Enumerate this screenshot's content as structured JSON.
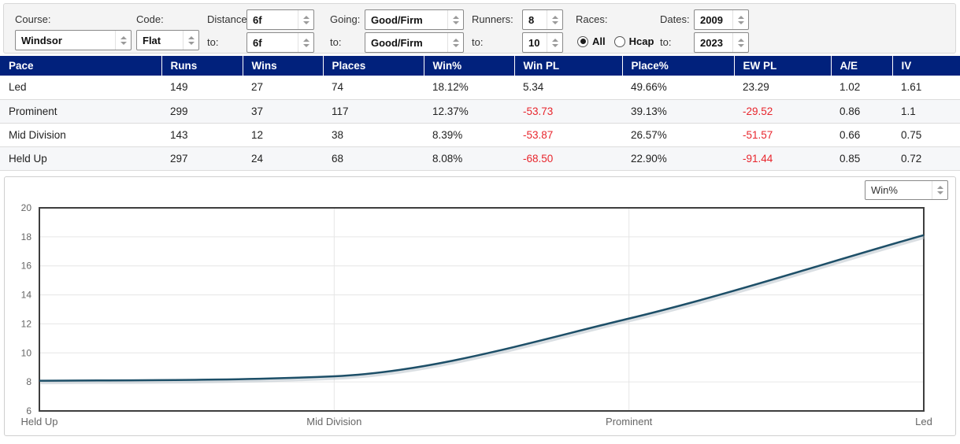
{
  "filters": {
    "course": {
      "label": "Course:",
      "value": "Windsor"
    },
    "code": {
      "label": "Code:",
      "value": "Flat"
    },
    "distance": {
      "label": "Distance:",
      "to_label": "to:",
      "from": "6f",
      "to": "6f"
    },
    "going": {
      "label": "Going:",
      "to_label": "to:",
      "from": "Good/Firm",
      "to": "Good/Firm"
    },
    "runners": {
      "label": "Runners:",
      "to_label": "to:",
      "from": "8",
      "to": "10"
    },
    "races": {
      "label": "Races:",
      "options": [
        {
          "label": "All",
          "selected": true
        },
        {
          "label": "Hcap",
          "selected": false
        }
      ]
    },
    "dates": {
      "label": "Dates:",
      "to_label": "to:",
      "from": "2009",
      "to": "2023"
    }
  },
  "table": {
    "header_bg": "#01217c",
    "negative_color": "#e8262d",
    "columns": [
      "Pace",
      "Runs",
      "Wins",
      "Places",
      "Win%",
      "Win PL",
      "Place%",
      "EW PL",
      "A/E",
      "IV"
    ],
    "rows": [
      [
        "Led",
        "149",
        "27",
        "74",
        "18.12%",
        "5.34",
        "49.66%",
        "23.29",
        "1.02",
        "1.61"
      ],
      [
        "Prominent",
        "299",
        "37",
        "117",
        "12.37%",
        "-53.73",
        "39.13%",
        "-29.52",
        "0.86",
        "1.1"
      ],
      [
        "Mid Division",
        "143",
        "12",
        "38",
        "8.39%",
        "-53.87",
        "26.57%",
        "-51.57",
        "0.66",
        "0.75"
      ],
      [
        "Held Up",
        "297",
        "24",
        "68",
        "8.08%",
        "-68.50",
        "22.90%",
        "-91.44",
        "0.85",
        "0.72"
      ]
    ]
  },
  "chart": {
    "metric_select": "Win%"
  },
  "chart_data": {
    "type": "line",
    "categories": [
      "Held Up",
      "Mid Division",
      "Prominent",
      "Led"
    ],
    "values": [
      8.08,
      8.39,
      12.37,
      18.12
    ],
    "title": "",
    "xlabel": "",
    "ylabel": "",
    "ylim": [
      6,
      20
    ],
    "ytick_step": 2,
    "grid": true,
    "smooth": true,
    "legend": "none",
    "line_color": "#1d4f68",
    "shadow_color": "#aeb9c2",
    "grid_color": "#e6e6e6",
    "border_color": "#3e3e3e"
  }
}
